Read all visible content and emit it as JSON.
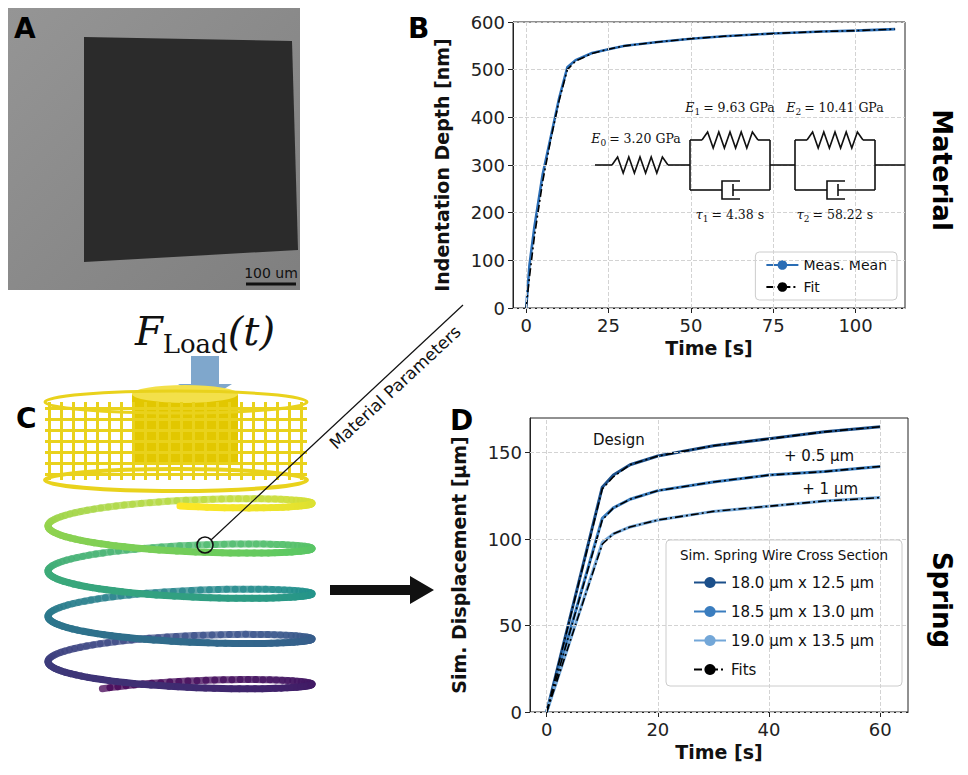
{
  "row_labels": [
    "Material",
    "Spring"
  ],
  "panels": {
    "A": {
      "letter": "A",
      "scale_bar": "100 um"
    },
    "C": {
      "letter": "C",
      "load_label": {
        "symbol": "F",
        "subscript": "Load",
        "argument": "(t)"
      },
      "link_label": "Material Parameters"
    }
  },
  "chart_data": [
    {
      "panel": "B",
      "type": "line",
      "x_label": "Time [s]",
      "y_label": "Indentation Depth [nm]",
      "xlim": [
        -4,
        115
      ],
      "xticks": [
        0,
        25,
        50,
        75,
        100
      ],
      "ylim": [
        0,
        600
      ],
      "yticks": [
        0,
        100,
        200,
        300,
        400,
        500,
        600
      ],
      "grid": true,
      "legend": "lower right",
      "marker": "none",
      "x": [
        0,
        1,
        2.5,
        5,
        7.5,
        10,
        12.5,
        15,
        20,
        25,
        30,
        40,
        50,
        60,
        75,
        90,
        100,
        112
      ],
      "series": [
        {
          "name": "Meas. Mean",
          "color": "#2a6db5",
          "line_style": "solid",
          "values": [
            0,
            90,
            170,
            280,
            360,
            440,
            505,
            520,
            535,
            543,
            550,
            558,
            565,
            570,
            576,
            580,
            582,
            585
          ]
        },
        {
          "name": "Fit",
          "color": "#000000",
          "line_style": "dashdot",
          "values": [
            0,
            65,
            150,
            265,
            355,
            435,
            500,
            518,
            534,
            543,
            550,
            558,
            565,
            570,
            576,
            580,
            582,
            585
          ]
        }
      ],
      "annotations": [
        {
          "symbol": "E",
          "subscript": "0",
          "text": "= 3.20 GPa"
        },
        {
          "symbol": "E",
          "subscript": "1",
          "text": "= 9.63 GPa"
        },
        {
          "symbol": "E",
          "subscript": "2",
          "text": "= 10.41 GPa"
        },
        {
          "symbol": "τ",
          "subscript": "1",
          "text": "= 4.38 s"
        },
        {
          "symbol": "τ",
          "subscript": "2",
          "text": "= 58.22 s"
        }
      ]
    },
    {
      "panel": "D",
      "type": "line",
      "x_label": "Time [s]",
      "y_label": "Sim. Displacement [µm]",
      "xlim": [
        -3,
        65
      ],
      "xticks": [
        0,
        20,
        40,
        60
      ],
      "ylim": [
        0,
        170
      ],
      "yticks": [
        0,
        50,
        100,
        150
      ],
      "grid": true,
      "legend": "lower right",
      "legend_title": "Sim. Spring Wire Cross Section",
      "marker": "none",
      "x": [
        0,
        10,
        12,
        15,
        20,
        30,
        40,
        50,
        60
      ],
      "series": [
        {
          "name": "18.0 µm x 12.5 µm",
          "color": "#1b4f8a",
          "line_style": "solid",
          "values": [
            0,
            130,
            137,
            143,
            148,
            154,
            158,
            162,
            165
          ]
        },
        {
          "name": "18.5 µm x 13.0 µm",
          "color": "#3a7dbf",
          "line_style": "solid",
          "values": [
            0,
            112,
            118,
            123,
            128,
            133,
            137,
            139,
            142
          ]
        },
        {
          "name": "19.0 µm x 13.5 µm",
          "color": "#73a7d8",
          "line_style": "solid",
          "values": [
            0,
            98,
            103,
            107,
            111,
            116,
            119,
            122,
            124
          ]
        },
        {
          "name": "Fits",
          "color": "#000000",
          "line_style": "dashdot",
          "values": [
            0,
            129,
            136,
            143,
            148,
            154,
            158,
            162,
            165
          ]
        },
        {
          "name": "Fits",
          "color": "#000000",
          "line_style": "dashdot",
          "values": [
            0,
            111,
            118,
            123,
            128,
            133,
            137,
            139,
            142
          ]
        },
        {
          "name": "Fits",
          "color": "#000000",
          "line_style": "dashdot",
          "values": [
            0,
            97,
            103,
            107,
            111,
            116,
            119,
            122,
            124
          ]
        }
      ],
      "annotations": [
        {
          "text": "Design",
          "x": 13,
          "y": 157
        },
        {
          "text": "+ 0.5 µm",
          "x": 49,
          "y": 148
        },
        {
          "text": "+ 1 µm",
          "x": 51,
          "y": 129
        }
      ]
    }
  ]
}
